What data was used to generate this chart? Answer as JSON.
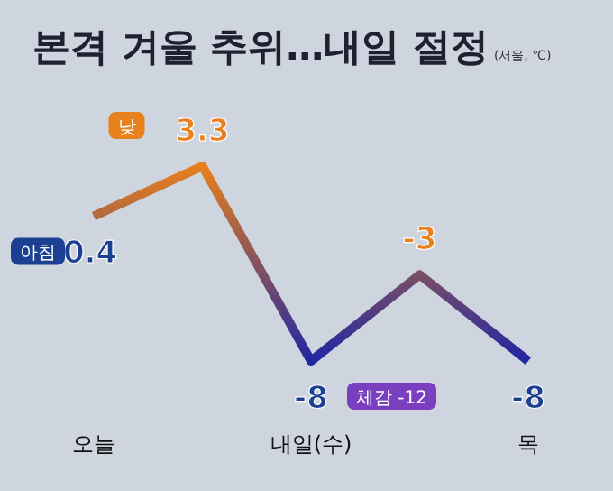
{
  "chart_data": {
    "type": "line",
    "title": "본격 겨울 추위…내일 절정",
    "subtitle": "(서울, ℃)",
    "categories": [
      "오늘",
      null,
      "내일(수)",
      null,
      "목"
    ],
    "series": [
      {
        "color": "#2126a3",
        "colors": [
          "#1b3f91",
          "#e8801c",
          "#1b3f91",
          "#e8801c",
          "#1b3f91"
        ],
        "values": [
          0.4,
          3.3,
          -8,
          -3,
          -8
        ],
        "value_labels": [
          "0.4",
          "3.3",
          "-8",
          "-3",
          "-8"
        ]
      }
    ],
    "annotations": [
      "아침",
      "낮",
      "체감 -12"
    ]
  }
}
